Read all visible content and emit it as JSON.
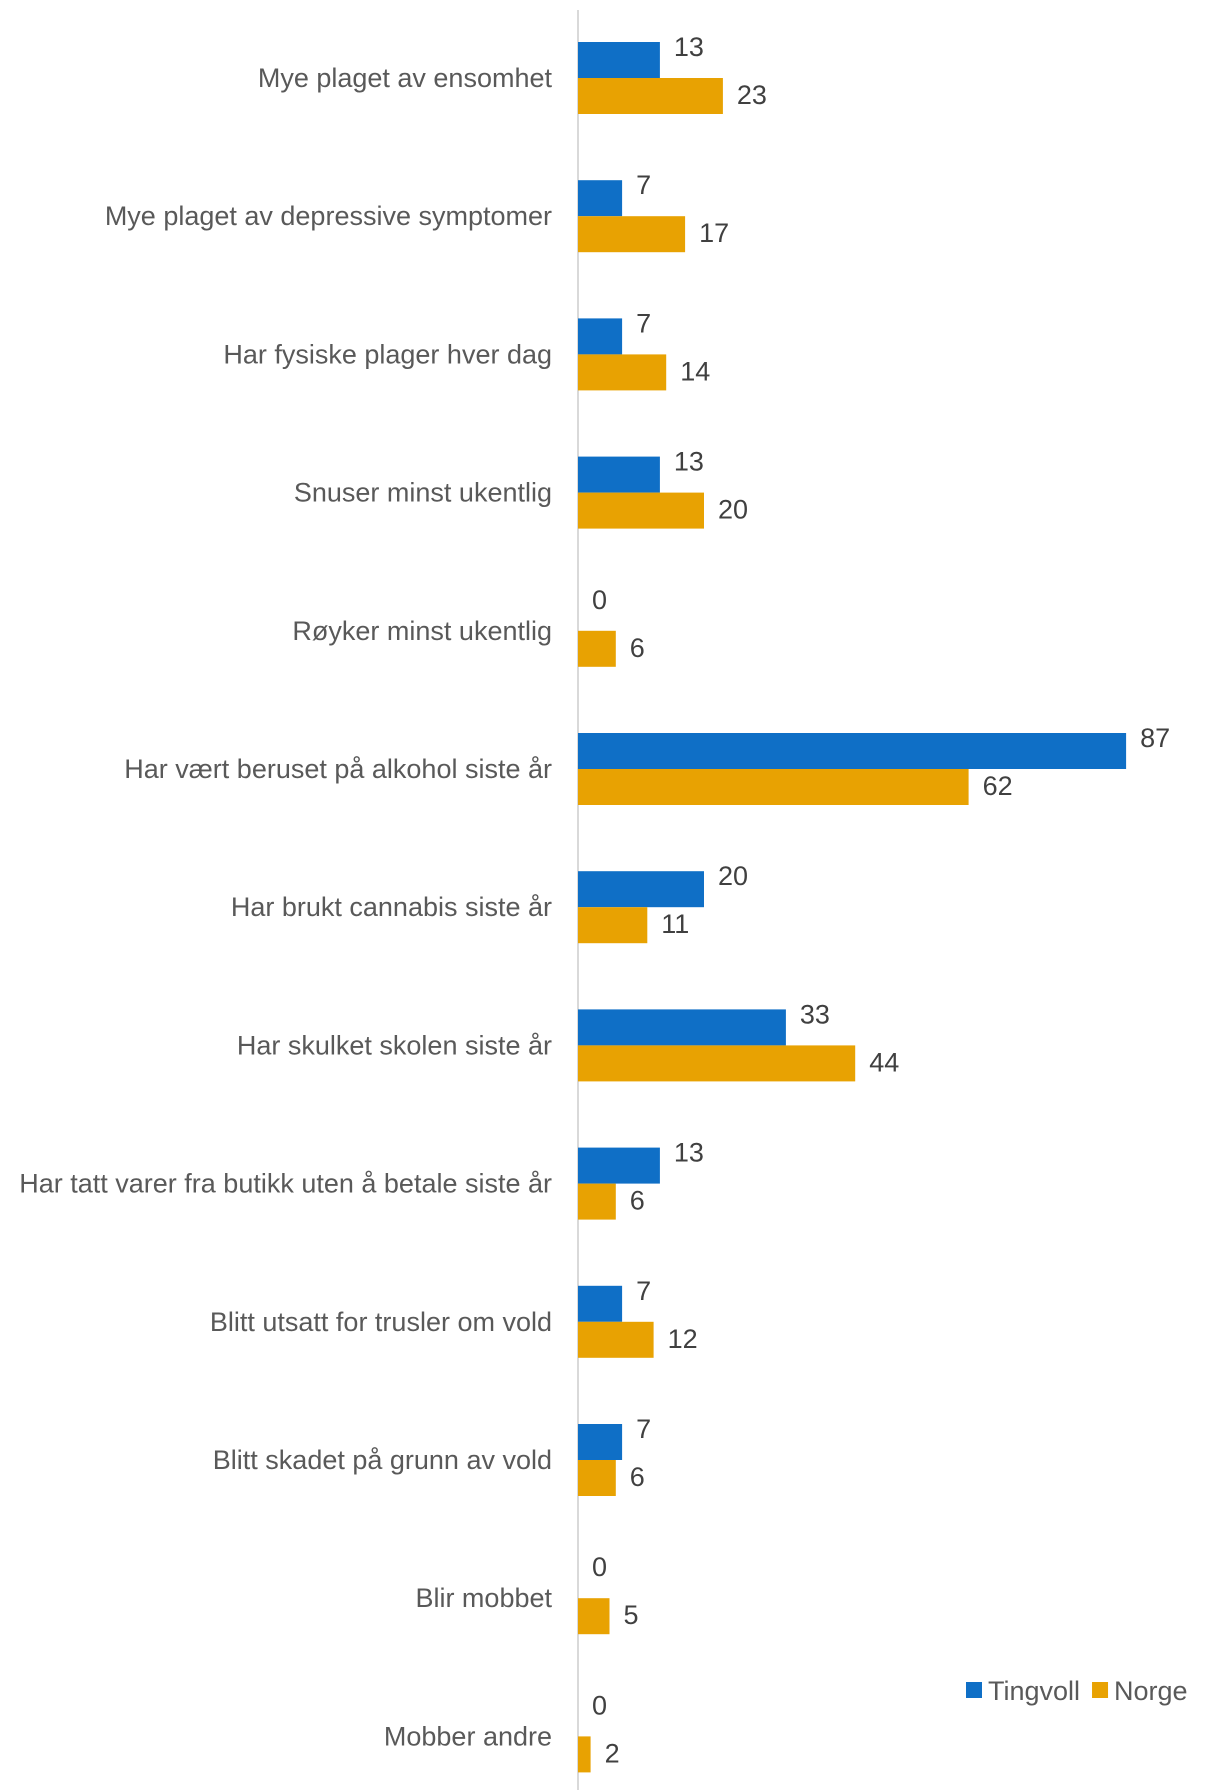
{
  "chart_data": {
    "type": "bar",
    "orientation": "horizontal",
    "categories": [
      "Mye plaget av ensomhet",
      "Mye plaget av depressive symptomer",
      "Har fysiske plager hver dag",
      "Snuser minst ukentlig",
      "Røyker minst ukentlig",
      "Har vært beruset på alkohol siste år",
      "Har brukt cannabis siste år",
      "Har skulket skolen siste år",
      "Har tatt varer fra butikk uten å betale siste år",
      "Blitt utsatt for trusler om vold",
      "Blitt skadet på grunn av vold",
      "Blir mobbet",
      "Mobber andre"
    ],
    "series": [
      {
        "name": "Tingvoll",
        "color": "#0F6FC6",
        "values": [
          13,
          7,
          7,
          13,
          0,
          87,
          20,
          33,
          13,
          7,
          7,
          0,
          0
        ]
      },
      {
        "name": "Norge",
        "color": "#E8A202",
        "values": [
          23,
          17,
          14,
          20,
          6,
          62,
          11,
          44,
          6,
          12,
          6,
          5,
          2
        ]
      }
    ],
    "data_labels": true,
    "xlim": [
      0,
      100
    ],
    "axis_color": "#D9D9D9",
    "grid": false,
    "legend": "bottom-right",
    "title": "",
    "xlabel": "",
    "ylabel": ""
  }
}
